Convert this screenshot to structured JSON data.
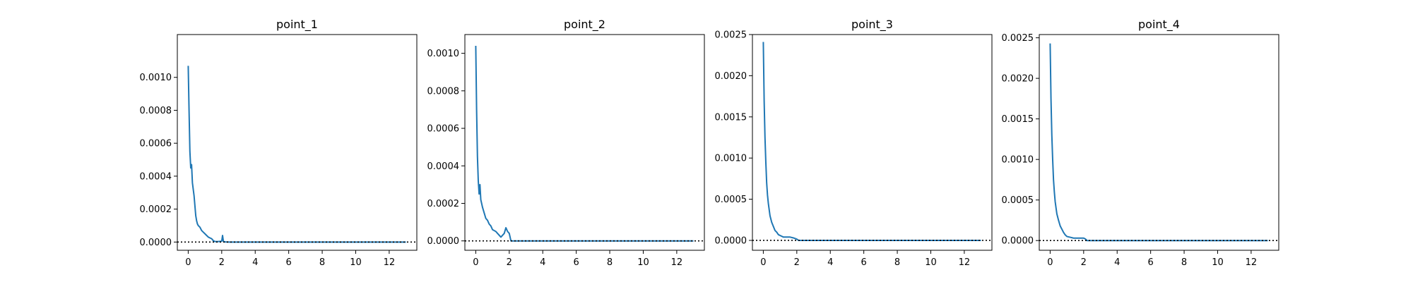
{
  "figure": {
    "background": "#ffffff",
    "line_color": "#1f77b4",
    "reference_line": {
      "y": 0,
      "style": "dotted",
      "color": "#000000"
    }
  },
  "chart_data": [
    {
      "type": "line",
      "title": "point_1",
      "xlabel": "",
      "ylabel": "",
      "xlim": [
        -0.65,
        13.65
      ],
      "ylim": [
        -5e-05,
        0.00126
      ],
      "xticks": [
        0,
        2,
        4,
        6,
        8,
        10,
        12
      ],
      "yticks": [
        0.0,
        0.0002,
        0.0004,
        0.0006,
        0.0008,
        0.001
      ],
      "ytick_labels": [
        "0.0000",
        "0.0002",
        "0.0004",
        "0.0006",
        "0.0008",
        "0.0010"
      ],
      "grid": false,
      "x": [
        0,
        0.05,
        0.1,
        0.15,
        0.2,
        0.25,
        0.3,
        0.35,
        0.4,
        0.45,
        0.5,
        0.55,
        0.6,
        0.7,
        0.8,
        0.9,
        1.0,
        1.1,
        1.2,
        1.3,
        1.4,
        1.5,
        1.6,
        1.7,
        1.8,
        1.9,
        2.0,
        2.05,
        2.1,
        2.15,
        2.2,
        2.5,
        13
      ],
      "y": [
        0.00107,
        0.0008,
        0.00055,
        0.00045,
        0.00047,
        0.00036,
        0.00032,
        0.00028,
        0.00022,
        0.00016,
        0.00013,
        0.00011,
        0.0001,
        9e-05,
        7e-05,
        6e-05,
        5e-05,
        4e-05,
        3e-05,
        2.5e-05,
        2e-05,
        8e-06,
        3e-06,
        3e-06,
        3e-06,
        4e-06,
        5e-06,
        4e-05,
        5e-06,
        2e-06,
        1e-06,
        0.0,
        0.0
      ]
    },
    {
      "type": "line",
      "title": "point_2",
      "xlabel": "",
      "ylabel": "",
      "xlim": [
        -0.65,
        13.65
      ],
      "ylim": [
        -5e-05,
        0.0011
      ],
      "xticks": [
        0,
        2,
        4,
        6,
        8,
        10,
        12
      ],
      "yticks": [
        0.0,
        0.0002,
        0.0004,
        0.0006,
        0.0008,
        0.001
      ],
      "ytick_labels": [
        "0.0000",
        "0.0002",
        "0.0004",
        "0.0006",
        "0.0008",
        "0.0010"
      ],
      "grid": false,
      "x": [
        0,
        0.05,
        0.1,
        0.15,
        0.2,
        0.25,
        0.3,
        0.35,
        0.4,
        0.5,
        0.6,
        0.7,
        0.8,
        0.9,
        1.0,
        1.1,
        1.2,
        1.3,
        1.4,
        1.5,
        1.6,
        1.7,
        1.8,
        1.9,
        2.0,
        2.1,
        2.2,
        13
      ],
      "y": [
        0.00104,
        0.0007,
        0.00045,
        0.00032,
        0.00025,
        0.0003,
        0.00022,
        0.0002,
        0.00018,
        0.00015,
        0.00012,
        0.00011,
        9e-05,
        8e-05,
        6e-05,
        5.5e-05,
        5e-05,
        4e-05,
        3e-05,
        2e-05,
        3e-05,
        4e-05,
        7e-05,
        5e-05,
        4e-05,
        0.0,
        0.0,
        0.0
      ]
    },
    {
      "type": "line",
      "title": "point_3",
      "xlabel": "",
      "ylabel": "",
      "xlim": [
        -0.65,
        13.65
      ],
      "ylim": [
        -0.00012,
        0.0025
      ],
      "xticks": [
        0,
        2,
        4,
        6,
        8,
        10,
        12
      ],
      "yticks": [
        0.0,
        0.0005,
        0.001,
        0.0015,
        0.002,
        0.0025
      ],
      "ytick_labels": [
        "0.0000",
        "0.0005",
        "0.0010",
        "0.0015",
        "0.0020",
        "0.0025"
      ],
      "grid": false,
      "x": [
        0,
        0.05,
        0.1,
        0.15,
        0.2,
        0.25,
        0.3,
        0.4,
        0.5,
        0.6,
        0.7,
        0.8,
        0.9,
        1.0,
        1.1,
        1.2,
        1.4,
        1.6,
        1.8,
        2.0,
        2.1,
        2.2,
        13
      ],
      "y": [
        0.00241,
        0.0017,
        0.00125,
        0.00095,
        0.0007,
        0.00055,
        0.00045,
        0.0003,
        0.00022,
        0.00017,
        0.00012,
        0.0001,
        7e-05,
        6e-05,
        5e-05,
        4e-05,
        4e-05,
        4e-05,
        3e-05,
        1.5e-05,
        0.0,
        0.0,
        0.0
      ]
    },
    {
      "type": "line",
      "title": "point_4",
      "xlabel": "",
      "ylabel": "",
      "xlim": [
        -0.65,
        13.65
      ],
      "ylim": [
        -0.00012,
        0.00254
      ],
      "xticks": [
        0,
        2,
        4,
        6,
        8,
        10,
        12
      ],
      "yticks": [
        0.0,
        0.0005,
        0.001,
        0.0015,
        0.002,
        0.0025
      ],
      "ytick_labels": [
        "0.0000",
        "0.0005",
        "0.0010",
        "0.0015",
        "0.0020",
        "0.0025"
      ],
      "grid": false,
      "x": [
        0,
        0.05,
        0.1,
        0.15,
        0.2,
        0.25,
        0.3,
        0.4,
        0.5,
        0.6,
        0.7,
        0.8,
        0.9,
        1.0,
        1.2,
        1.4,
        1.6,
        1.8,
        2.0,
        2.1,
        2.2,
        13
      ],
      "y": [
        0.00243,
        0.00175,
        0.0013,
        0.001,
        0.00075,
        0.0006,
        0.00048,
        0.00033,
        0.00025,
        0.00018,
        0.00014,
        0.0001,
        7e-05,
        5e-05,
        4e-05,
        3e-05,
        3e-05,
        3e-05,
        3e-05,
        2e-05,
        0.0,
        0.0
      ]
    }
  ]
}
